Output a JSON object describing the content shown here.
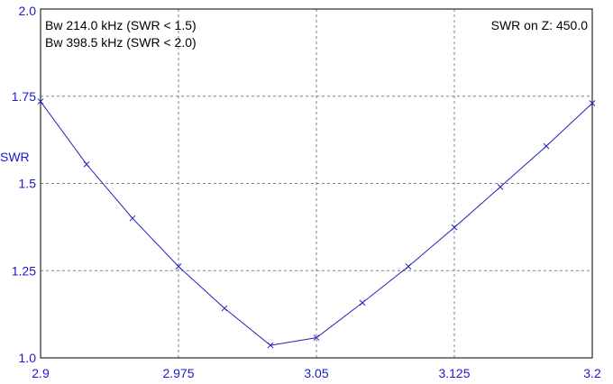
{
  "chart_data": {
    "type": "line",
    "title": "",
    "xlabel": "",
    "ylabel": "SWR",
    "xlim": [
      2.9,
      3.2
    ],
    "ylim": [
      1.0,
      2.0
    ],
    "x_ticks": [
      "2.9",
      "2.975",
      "3.05",
      "3.125",
      "3.2"
    ],
    "y_ticks": [
      "1.0",
      "1.25",
      "1.5",
      "1.75",
      "2.0"
    ],
    "x_tick_values": [
      2.9,
      2.975,
      3.05,
      3.125,
      3.2
    ],
    "y_tick_values": [
      1.0,
      1.25,
      1.5,
      1.75,
      2.0
    ],
    "grid": true,
    "annotations": {
      "bw1": "Bw 214.0 kHz (SWR < 1.5)",
      "bw2": "Bw 398.5 kHz (SWR < 2.0)",
      "z": "SWR on Z: 450.0"
    },
    "series": [
      {
        "x": [
          2.9,
          2.925,
          2.95,
          2.975,
          3.0,
          3.025,
          3.05,
          3.075,
          3.1,
          3.125,
          3.15,
          3.175,
          3.2
        ],
        "y": [
          1.735,
          1.555,
          1.4,
          1.262,
          1.142,
          1.036,
          1.058,
          1.158,
          1.262,
          1.374,
          1.49,
          1.607,
          1.73
        ]
      }
    ],
    "colors": {
      "line": "#2222bb",
      "axis_text": "#1a1acc",
      "grid": "#808080"
    }
  }
}
